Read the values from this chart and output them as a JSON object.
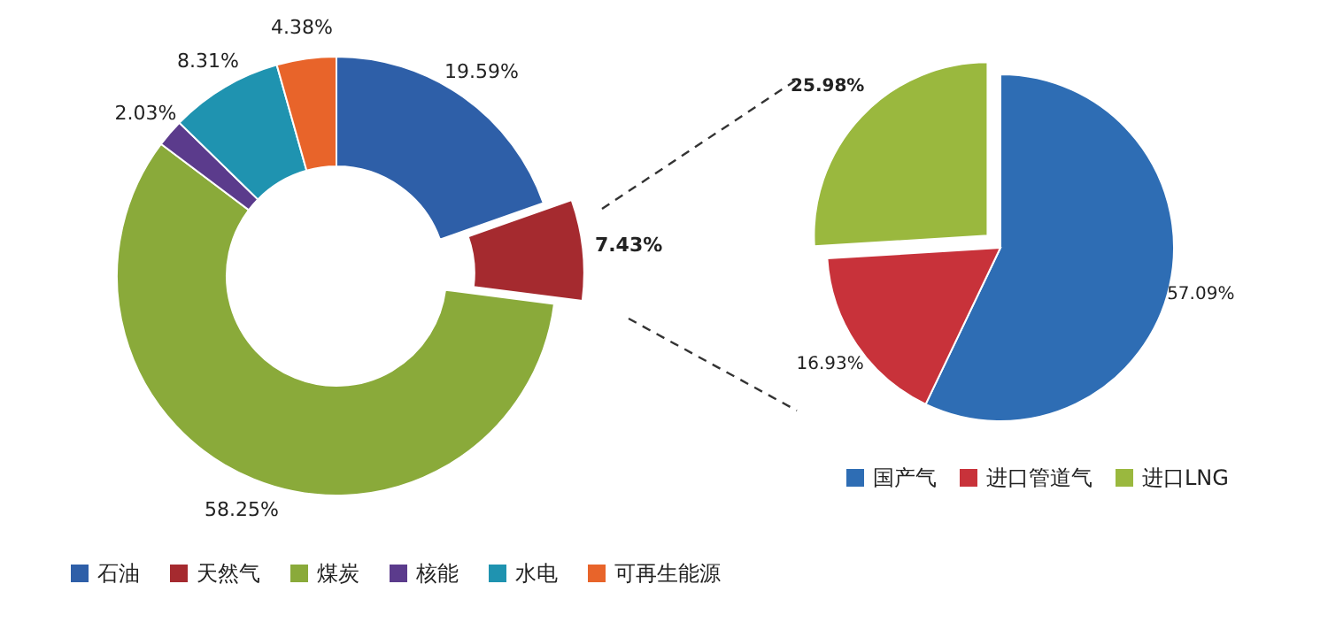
{
  "chart_data": [
    {
      "type": "donut",
      "categories": [
        "石油",
        "天然气",
        "煤炭",
        "核能",
        "水电",
        "可再生能源"
      ],
      "values": [
        19.59,
        7.43,
        58.25,
        2.03,
        8.31,
        4.38
      ],
      "colors": [
        "#2e5fa8",
        "#a52a2f",
        "#8aaa3a",
        "#5b3b8c",
        "#1f93b0",
        "#e8642a"
      ],
      "value_labels": [
        "19.59%",
        "7.43%",
        "58.25%",
        "2.03%",
        "8.31%",
        "4.38%"
      ],
      "legend": "bottom"
    },
    {
      "type": "pie",
      "categories": [
        "国产气",
        "进口管道气",
        "进口LNG"
      ],
      "values": [
        57.09,
        16.93,
        25.98
      ],
      "colors": [
        "#2e6db4",
        "#c8323a",
        "#9ab83e"
      ],
      "value_labels": [
        "57.09%",
        "16.93%",
        "25.98%"
      ],
      "legend": "bottom"
    }
  ]
}
